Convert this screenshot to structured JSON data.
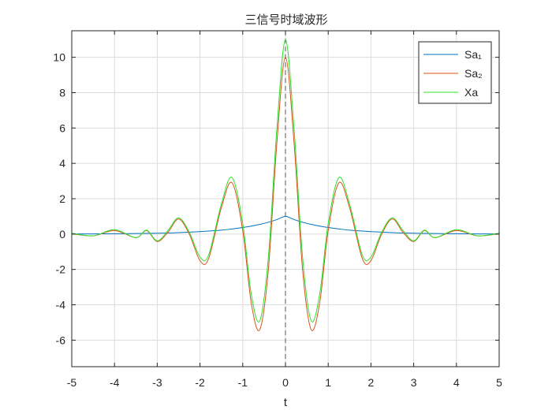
{
  "chart_data": {
    "type": "line",
    "title": "三信号时域波形",
    "xlabel": "t",
    "ylabel": "",
    "xlim": [
      -5,
      5
    ],
    "ylim": [
      -7.5,
      11.5
    ],
    "xticks": [
      -5,
      -4,
      -3,
      -2,
      -1,
      0,
      1,
      2,
      3,
      4,
      5
    ],
    "yticks": [
      -6,
      -4,
      -2,
      0,
      2,
      4,
      6,
      8,
      10
    ],
    "grid": true,
    "legend_position": "top-right",
    "x": [
      -5.0,
      -4.5,
      -4.0,
      -3.5,
      -3.25,
      -3.0,
      -2.75,
      -2.5,
      -2.25,
      -2.0,
      -1.8,
      -1.5,
      -1.25,
      -1.0,
      -0.8,
      -0.6,
      -0.4,
      -0.2,
      0.0,
      0.2,
      0.4,
      0.6,
      0.8,
      1.0,
      1.25,
      1.5,
      1.8,
      2.0,
      2.25,
      2.5,
      2.75,
      3.0,
      3.25,
      3.5,
      4.0,
      4.5,
      5.0
    ],
    "series": [
      {
        "name": "Sa₁",
        "color": "#0072BD",
        "values": [
          0.01,
          0.01,
          0.02,
          0.03,
          0.04,
          0.05,
          0.06,
          0.08,
          0.11,
          0.14,
          0.17,
          0.22,
          0.29,
          0.37,
          0.45,
          0.55,
          0.67,
          0.82,
          1.0,
          0.82,
          0.67,
          0.55,
          0.45,
          0.37,
          0.29,
          0.22,
          0.17,
          0.14,
          0.11,
          0.08,
          0.06,
          0.05,
          0.04,
          0.03,
          0.02,
          0.01,
          0.01
        ]
      },
      {
        "name": "Sa₂",
        "color": "#D95319",
        "values": [
          0.02,
          -0.1,
          0.2,
          -0.2,
          0.2,
          -0.42,
          0.1,
          0.85,
          0.0,
          -1.5,
          -1.4,
          1.5,
          2.9,
          0.2,
          -3.9,
          -5.4,
          -2.0,
          5.2,
          10.0,
          5.2,
          -2.0,
          -5.4,
          -3.9,
          0.2,
          2.9,
          1.5,
          -1.4,
          -1.5,
          0.0,
          0.85,
          0.1,
          -0.42,
          0.2,
          -0.2,
          0.2,
          -0.1,
          0.02
        ]
      },
      {
        "name": "Xa",
        "color": "#2EE02E",
        "values": [
          0.05,
          -0.1,
          0.25,
          -0.2,
          0.22,
          -0.38,
          0.2,
          0.92,
          0.1,
          -1.3,
          -1.2,
          1.7,
          3.2,
          0.6,
          -3.4,
          -4.9,
          -1.3,
          6.0,
          11.0,
          6.0,
          -1.3,
          -4.9,
          -3.4,
          0.6,
          3.2,
          1.7,
          -1.2,
          -1.3,
          0.1,
          0.92,
          0.2,
          -0.38,
          0.22,
          -0.2,
          0.25,
          -0.1,
          0.05
        ]
      }
    ],
    "annotations": [
      {
        "type": "vertical-dashed-line",
        "x": 0
      }
    ]
  }
}
